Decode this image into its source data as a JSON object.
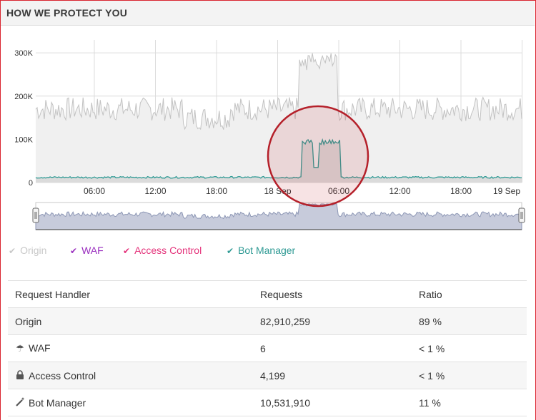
{
  "panel": {
    "title": "HOW WE PROTECT YOU"
  },
  "colors": {
    "origin_line": "#c2c2c2",
    "bot_manager_line": "#2e9a94",
    "waf": "#9a2fbf",
    "access_control": "#e4317a",
    "highlight_circle": "#b5202a",
    "navigator_fill": "#8d97b5"
  },
  "chart_data": {
    "type": "line",
    "y_ticks": [
      "300K",
      "200K",
      "100K",
      "0"
    ],
    "x_ticks": [
      "06:00",
      "12:00",
      "18:00",
      "18 Sep",
      "06:00",
      "12:00",
      "18:00",
      "19 Sep"
    ],
    "ylim": [
      0,
      330000
    ],
    "grid": true,
    "legend_position": "below",
    "series": [
      {
        "name": "Origin",
        "visible": false,
        "approx_baseline": 170000,
        "peak": 300000
      },
      {
        "name": "WAF",
        "visible": true,
        "approx_value": 0
      },
      {
        "name": "Access Control",
        "visible": true,
        "approx_value": 0
      },
      {
        "name": "Bot Manager",
        "visible": true,
        "approx_baseline": 12000,
        "peak": 100000
      }
    ]
  },
  "legend": [
    {
      "label": "Origin",
      "icon": "check-icon",
      "color": "#c8c8c8"
    },
    {
      "label": "WAF",
      "icon": "check-icon",
      "color": "#9a2fbf"
    },
    {
      "label": "Access Control",
      "icon": "check-icon",
      "color": "#e4317a"
    },
    {
      "label": "Bot Manager",
      "icon": "check-icon",
      "color": "#2e9a94"
    }
  ],
  "table": {
    "headers": [
      "Request Handler",
      "Requests",
      "Ratio"
    ],
    "rows": [
      {
        "handler": "Origin",
        "icon": "",
        "requests": "82,910,259",
        "ratio": "89 %"
      },
      {
        "handler": "WAF",
        "icon": "umbrella-icon",
        "requests": "6",
        "ratio": "< 1 %"
      },
      {
        "handler": "Access Control",
        "icon": "lock-icon",
        "requests": "4,199",
        "ratio": "< 1 %"
      },
      {
        "handler": "Bot Manager",
        "icon": "magic-wand-icon",
        "requests": "10,531,910",
        "ratio": "11 %"
      }
    ]
  }
}
